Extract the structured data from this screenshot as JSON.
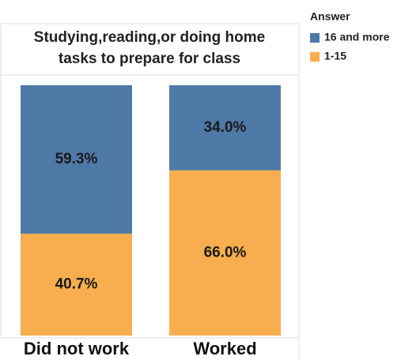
{
  "chart_data": {
    "type": "stacked_bar_100",
    "title": "Studying,reading,or doing home tasks to prepare for class",
    "categories": [
      "Did not work",
      "Worked"
    ],
    "series": [
      {
        "name": "16 and more",
        "color": "#4e79a7",
        "values": [
          59.3,
          34.0
        ],
        "value_labels": [
          "59.3%",
          "34.0%"
        ]
      },
      {
        "name": "1-15",
        "color": "#f8ae4e",
        "values": [
          40.7,
          66.0
        ],
        "value_labels": [
          "40.7%",
          "66.0%"
        ]
      }
    ],
    "ylim": [
      0,
      100
    ],
    "legend_title": "Answer",
    "legend": "top-right"
  }
}
